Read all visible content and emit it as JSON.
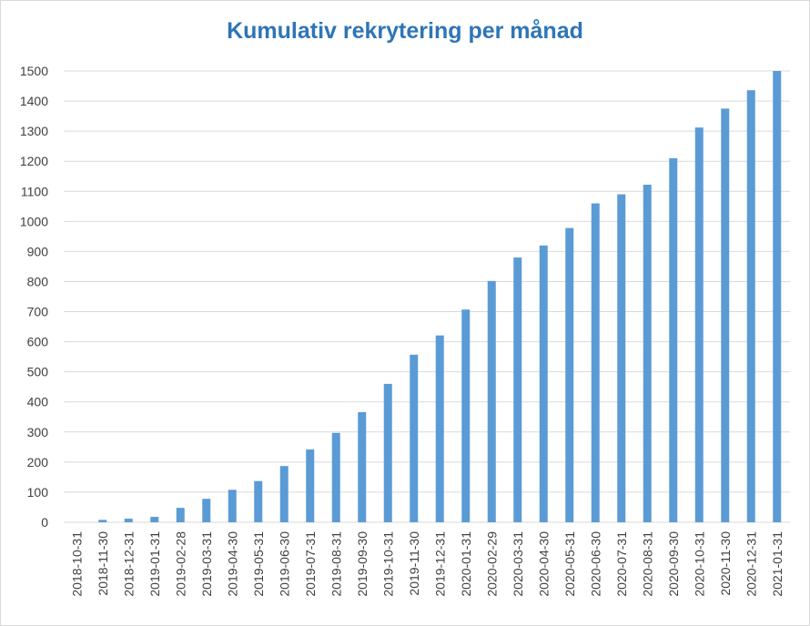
{
  "chart_data": {
    "type": "bar",
    "title": "Kumulativ rekrytering per månad",
    "xlabel": "",
    "ylabel": "",
    "ylim": [
      0,
      1500
    ],
    "yticks": [
      0,
      100,
      200,
      300,
      400,
      500,
      600,
      700,
      800,
      900,
      1000,
      1100,
      1200,
      1300,
      1400,
      1500
    ],
    "grid": true,
    "legend": "none",
    "bar_color": "#5b9bd5",
    "categories": [
      "2018-10-31",
      "2018-11-30",
      "2018-12-31",
      "2019-01-31",
      "2019-02-28",
      "2019-03-31",
      "2019-04-30",
      "2019-05-31",
      "2019-06-30",
      "2019-07-31",
      "2019-08-31",
      "2019-09-30",
      "2019-10-31",
      "2019-11-30",
      "2019-12-31",
      "2020-01-31",
      "2020-02-29",
      "2020-03-31",
      "2020-04-30",
      "2020-05-31",
      "2020-06-30",
      "2020-07-31",
      "2020-08-31",
      "2020-09-30",
      "2020-10-31",
      "2020-11-30",
      "2020-12-31",
      "2021-01-31"
    ],
    "values": [
      0,
      8,
      12,
      18,
      48,
      78,
      108,
      137,
      187,
      242,
      297,
      366,
      460,
      557,
      621,
      707,
      802,
      880,
      920,
      978,
      1060,
      1090,
      1122,
      1210,
      1312,
      1375,
      1436,
      1500
    ]
  }
}
